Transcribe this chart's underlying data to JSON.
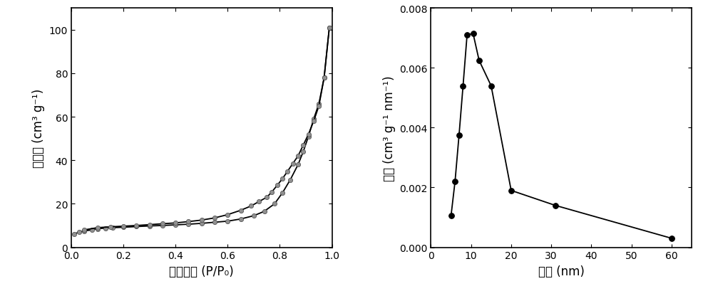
{
  "left": {
    "xlabel": "相对压力 (P/P₀)",
    "ylabel": "吸附量 (cm³ g⁻¹)",
    "xlim": [
      0.0,
      1.0
    ],
    "ylim": [
      0,
      110
    ],
    "yticks": [
      0,
      20,
      40,
      60,
      80,
      100
    ],
    "xticks": [
      0.0,
      0.2,
      0.4,
      0.6,
      0.8,
      1.0
    ],
    "adsorption_x": [
      0.01,
      0.03,
      0.05,
      0.08,
      0.1,
      0.13,
      0.16,
      0.2,
      0.25,
      0.3,
      0.35,
      0.4,
      0.45,
      0.5,
      0.55,
      0.6,
      0.65,
      0.7,
      0.74,
      0.78,
      0.81,
      0.84,
      0.87,
      0.89,
      0.91,
      0.93,
      0.95,
      0.97,
      0.99
    ],
    "adsorption_y": [
      6.0,
      7.0,
      7.5,
      8.0,
      8.5,
      8.8,
      9.0,
      9.2,
      9.5,
      9.8,
      10.0,
      10.3,
      10.6,
      11.0,
      11.5,
      12.0,
      13.0,
      14.5,
      16.5,
      20.0,
      25.0,
      31.0,
      38.0,
      44.0,
      51.0,
      59.0,
      66.0,
      78.0,
      101.0
    ],
    "desorption_x": [
      0.99,
      0.97,
      0.95,
      0.93,
      0.91,
      0.89,
      0.87,
      0.85,
      0.83,
      0.81,
      0.79,
      0.77,
      0.75,
      0.72,
      0.69,
      0.65,
      0.6,
      0.55,
      0.5,
      0.45,
      0.4,
      0.35,
      0.3,
      0.25,
      0.2,
      0.15,
      0.1,
      0.05
    ],
    "desorption_y": [
      101.0,
      78.0,
      65.0,
      58.0,
      52.0,
      47.0,
      42.0,
      38.5,
      35.0,
      31.5,
      28.5,
      25.5,
      23.0,
      21.0,
      19.0,
      17.0,
      15.0,
      13.5,
      12.5,
      11.8,
      11.2,
      10.8,
      10.4,
      10.0,
      9.7,
      9.4,
      9.0,
      8.0
    ]
  },
  "right": {
    "xlabel": "孔径 (nm)",
    "ylabel": "孔容 (cm³ g⁻¹ nm⁻¹)",
    "xlim": [
      0,
      65
    ],
    "ylim": [
      0.0,
      0.008
    ],
    "yticks": [
      0.0,
      0.002,
      0.004,
      0.006,
      0.008
    ],
    "xticks": [
      0,
      10,
      20,
      30,
      40,
      50,
      60
    ],
    "pore_x": [
      5.0,
      6.0,
      7.0,
      8.0,
      9.0,
      10.5,
      12.0,
      15.0,
      20.0,
      31.0,
      60.0
    ],
    "pore_y": [
      0.00105,
      0.0022,
      0.00375,
      0.0054,
      0.0071,
      0.00715,
      0.00625,
      0.0054,
      0.0019,
      0.0014,
      0.0003
    ]
  },
  "line_color": "#000000",
  "marker_color_left": "#909090",
  "marker_color_right": "#000000",
  "background": "#ffffff",
  "fontsize_label": 12,
  "fontsize_tick": 10
}
